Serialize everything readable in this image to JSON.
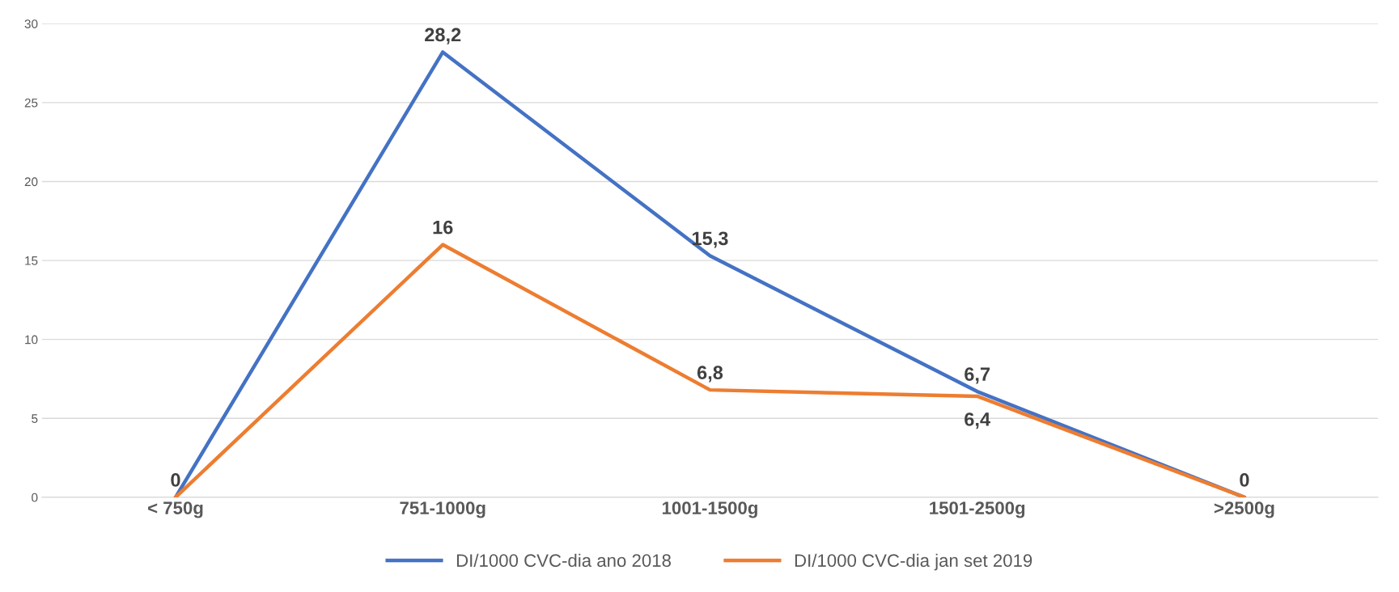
{
  "chart_data": {
    "type": "line",
    "categories": [
      "< 750g",
      "751-1000g",
      "1001-1500g",
      "1501-2500g",
      ">2500g"
    ],
    "series": [
      {
        "name": "DI/1000 CVC-dia ano 2018",
        "color": "#4472c4",
        "values": [
          0,
          28.2,
          15.3,
          6.7,
          0
        ],
        "value_labels": [
          "0",
          "28,2",
          "15,3",
          "6,7",
          "0"
        ]
      },
      {
        "name": "DI/1000 CVC-dia jan set 2019",
        "color": "#ed7d31",
        "values": [
          0,
          16,
          6.8,
          6.4,
          0
        ],
        "value_labels": [
          null,
          "16",
          "6,8",
          "6,4",
          null
        ]
      }
    ],
    "ylim": [
      0,
      30
    ],
    "yticks": [
      0,
      5,
      10,
      15,
      20,
      25,
      30
    ],
    "grid": "y",
    "legend": "bottom",
    "marker": "none",
    "line_style": "solid"
  }
}
